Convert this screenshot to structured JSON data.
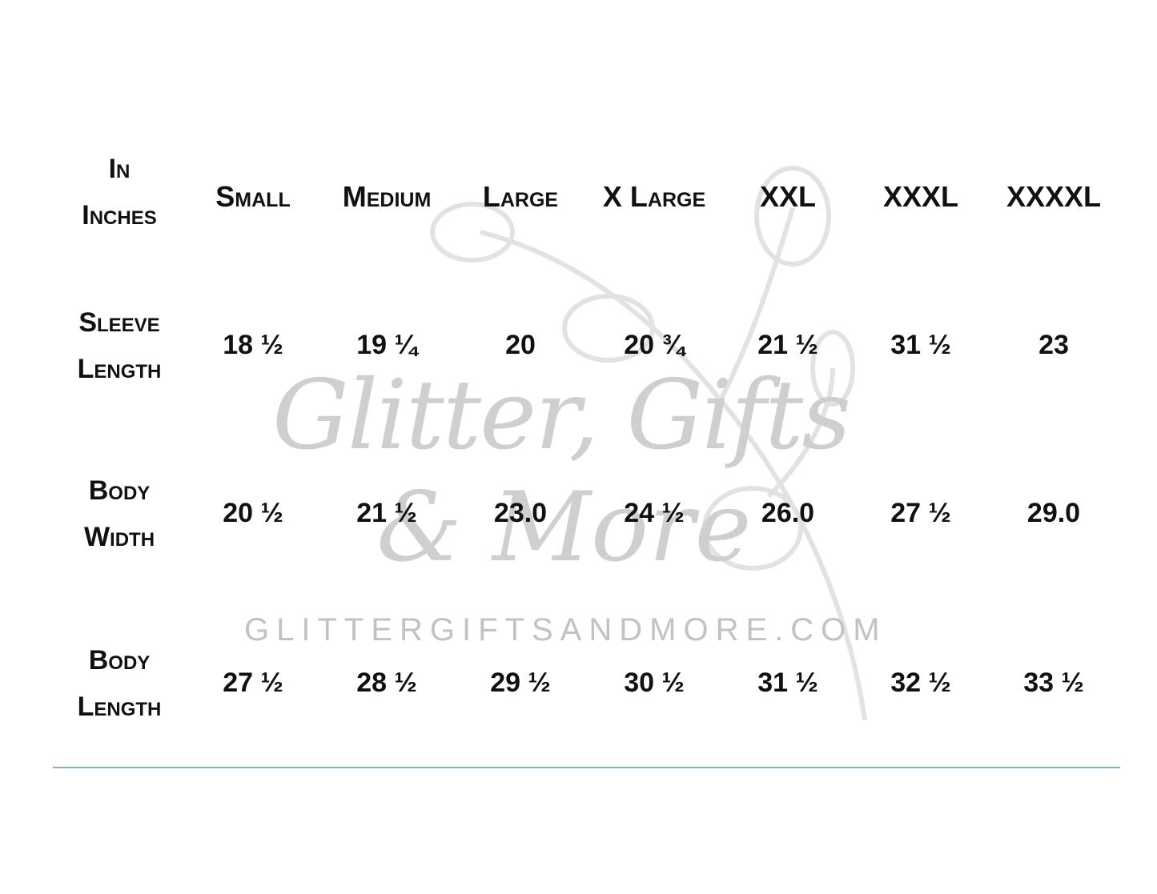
{
  "table": {
    "corner_label": [
      "In",
      "Inches"
    ],
    "columns": [
      "Small",
      "Medium",
      "Large",
      "X Large",
      "XXL",
      "XXXL",
      "XXXXL"
    ],
    "rows": [
      {
        "label": [
          "Sleeve",
          "Length"
        ],
        "values": [
          "18 ½",
          "19 ¼",
          "20",
          "20 ¾",
          "21 ½",
          "31 ½",
          "23"
        ]
      },
      {
        "label": [
          "Body",
          "Width"
        ],
        "values": [
          "20 ½",
          "21 ½",
          "23.0",
          "24 ½",
          "26.0",
          "27 ½",
          "29.0"
        ]
      },
      {
        "label": [
          "Body",
          "Length"
        ],
        "values": [
          "27 ½",
          "28 ½",
          "29 ½",
          "30 ½",
          "31 ½",
          "32 ½",
          "33 ½"
        ]
      }
    ]
  },
  "watermark": {
    "logo_line1": "Glitter, Gifts",
    "logo_line2": "& More",
    "url": "GLITTERGIFTSANDMORE.COM"
  },
  "colors": {
    "rule": "#7fb0dc",
    "watermark": "#d0d0d0"
  }
}
